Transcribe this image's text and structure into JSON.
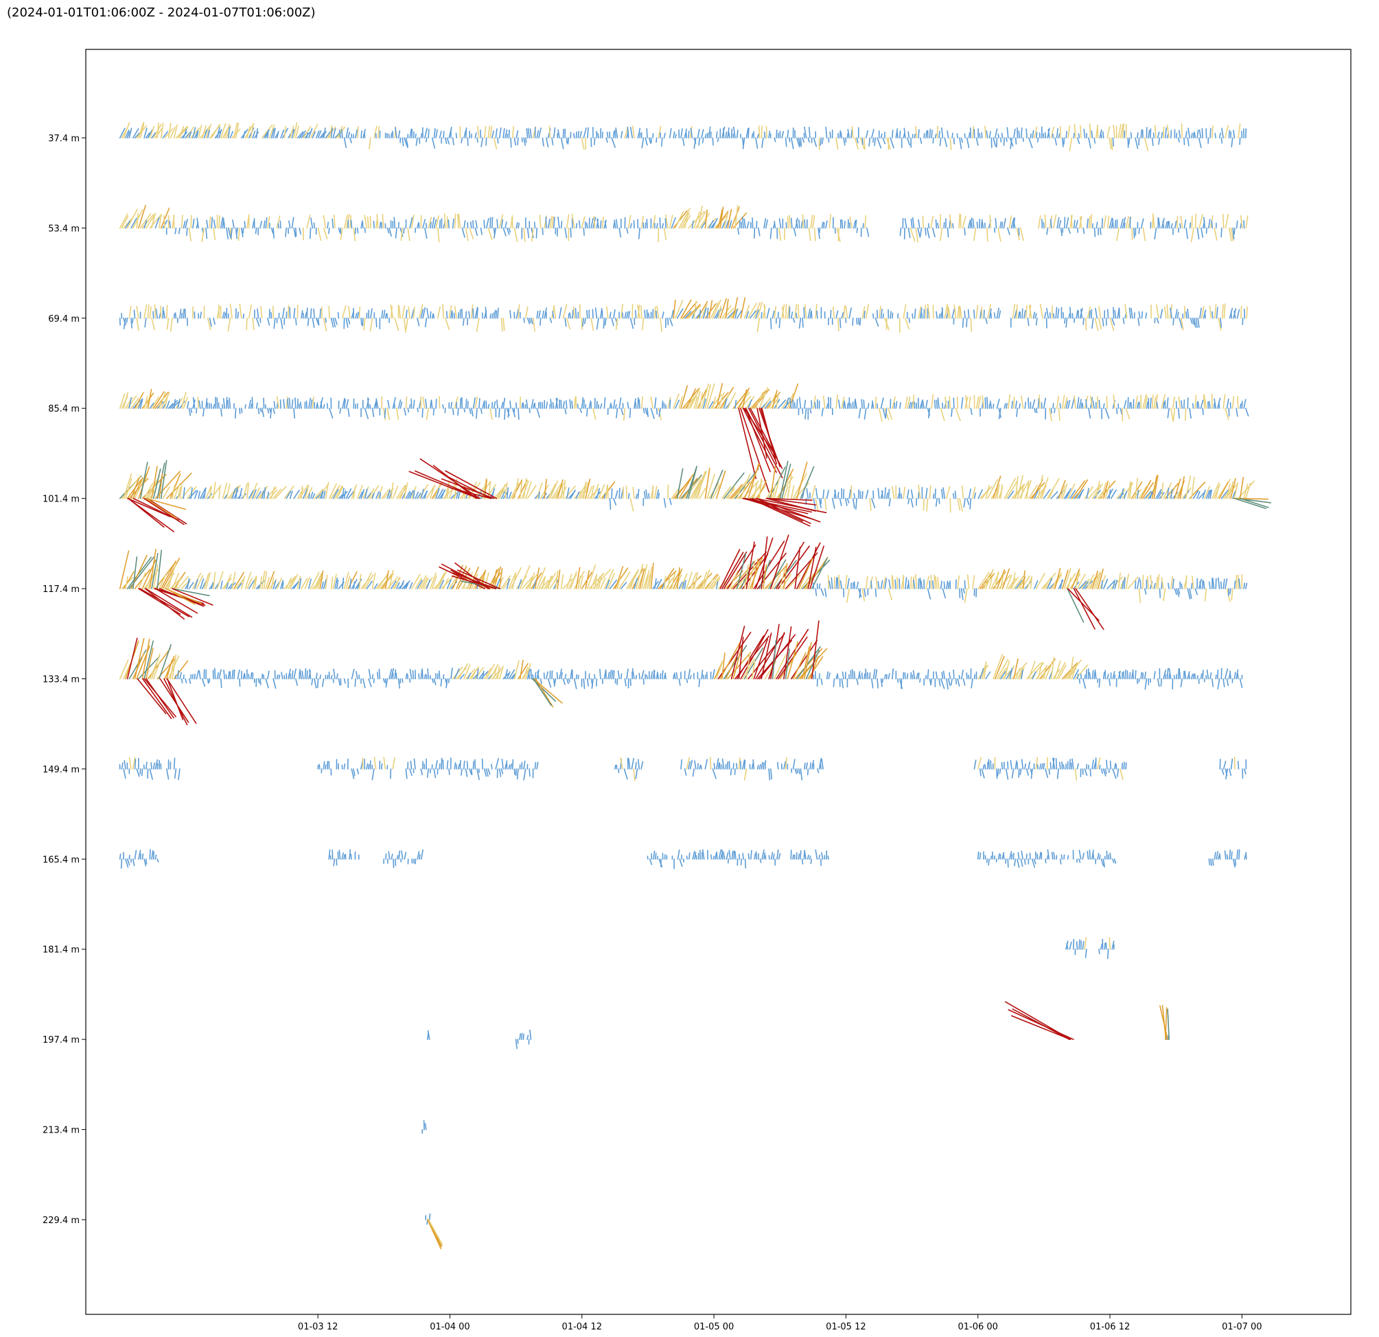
{
  "title": "(2024-01-01T01:06:00Z - 2024-01-07T01:06:00Z)",
  "colors": {
    "speed_low": "#5b9bd5",
    "speed_mid": "#e8d07a",
    "speed_high": "#e0a030",
    "speed_gust": "#5f8f7f",
    "speed_max": "#b50e0e",
    "frame": "#000000",
    "background": "#ffffff"
  },
  "chart_data": {
    "type": "stick-plot",
    "title": "(2024-01-01T01:06:00Z - 2024-01-07T01:06:00Z)",
    "xlabel": "",
    "ylabel": "",
    "x_ticks": [
      "01-03 12",
      "01-04 00",
      "01-04 12",
      "01-05 00",
      "01-05 12",
      "01-06 00",
      "01-06 12",
      "01-07 00"
    ],
    "x_tick_hours": [
      12,
      24,
      36,
      48,
      60,
      72,
      84,
      96
    ],
    "xlim_hours": [
      -9.1,
      105.9
    ],
    "x_origin": "2024-01-03 00:00",
    "data_range_hours": [
      -6.0,
      96.5
    ],
    "y_ticks": [
      "37.4 m",
      "53.4 m",
      "69.4 m",
      "85.4 m",
      "101.4 m",
      "117.4 m",
      "133.4 m",
      "149.4 m",
      "165.4 m",
      "181.4 m",
      "197.4 m",
      "213.4 m",
      "229.4 m"
    ],
    "y_tick_values": [
      37.4,
      53.4,
      69.4,
      85.4,
      101.4,
      117.4,
      133.4,
      149.4,
      165.4,
      181.4,
      197.4,
      213.4,
      229.4
    ],
    "ylim": [
      21.7,
      246.2
    ],
    "y_inverted": true,
    "grid": false,
    "legend": "none",
    "levels": [
      {
        "depth": 37.4,
        "coverage": [
          [
            -6.0,
            96.5
          ]
        ],
        "intensity": [
          [
            -6.0,
            14.0,
            0.35
          ],
          [
            14.0,
            50.0,
            0.25
          ],
          [
            50.0,
            80.0,
            0.25
          ],
          [
            80.0,
            96.5,
            0.3
          ]
        ],
        "events": []
      },
      {
        "depth": 53.4,
        "coverage": [
          [
            -6.0,
            50.0
          ],
          [
            50.0,
            62.0
          ],
          [
            65.0,
            76.0
          ],
          [
            77.5,
            96.5
          ]
        ],
        "intensity": [
          [
            -6.0,
            -2.0,
            0.55
          ],
          [
            -2.0,
            44.0,
            0.3
          ],
          [
            44.0,
            50.0,
            0.5
          ],
          [
            50.0,
            96.5,
            0.3
          ]
        ],
        "events": []
      },
      {
        "depth": 69.4,
        "coverage": [
          [
            -6.0,
            74.0
          ],
          [
            75.0,
            96.5
          ]
        ],
        "intensity": [
          [
            -6.0,
            44.0,
            0.3
          ],
          [
            44.0,
            52.0,
            0.45
          ],
          [
            52.0,
            96.5,
            0.3
          ]
        ],
        "events": []
      },
      {
        "depth": 85.4,
        "coverage": [
          [
            -6.0,
            96.5
          ]
        ],
        "intensity": [
          [
            -6.0,
            0.0,
            0.45
          ],
          [
            0.0,
            44.0,
            0.25
          ],
          [
            44.0,
            55.0,
            0.55
          ],
          [
            55.0,
            96.5,
            0.3
          ]
        ],
        "events": [
          [
            50.5,
            160,
            2.2
          ],
          [
            51.0,
            150,
            1.8
          ],
          [
            52.0,
            165,
            1.6
          ]
        ]
      },
      {
        "depth": 101.4,
        "coverage": [
          [
            -6.0,
            96.5
          ]
        ],
        "intensity": [
          [
            -6.0,
            -1.0,
            0.85
          ],
          [
            -1.0,
            22.0,
            0.35
          ],
          [
            22.0,
            38.0,
            0.45
          ],
          [
            38.0,
            44.0,
            0.3
          ],
          [
            44.0,
            56.0,
            0.8
          ],
          [
            56.0,
            72.0,
            0.3
          ],
          [
            72.0,
            96.5,
            0.5
          ]
        ],
        "events": [
          [
            -5.0,
            120,
            1.4
          ],
          [
            -3.5,
            115,
            1.2
          ],
          [
            26.5,
            300,
            1.8
          ],
          [
            28.0,
            290,
            1.4
          ],
          [
            51.0,
            110,
            2.0
          ],
          [
            51.5,
            105,
            1.8
          ],
          [
            52.5,
            95,
            1.3
          ],
          [
            95.5,
            100,
            1.0
          ]
        ]
      },
      {
        "depth": 117.4,
        "coverage": [
          [
            -6.0,
            96.5
          ]
        ],
        "intensity": [
          [
            -6.0,
            -1.0,
            0.85
          ],
          [
            -1.0,
            22.0,
            0.4
          ],
          [
            22.0,
            44.0,
            0.55
          ],
          [
            44.0,
            48.5,
            0.45
          ],
          [
            48.5,
            57.0,
            1.2
          ],
          [
            57.0,
            72.0,
            0.3
          ],
          [
            72.0,
            86.0,
            0.45
          ],
          [
            86.0,
            96.5,
            0.3
          ]
        ],
        "events": [
          [
            -4.0,
            120,
            1.4
          ],
          [
            -2.5,
            115,
            1.3
          ],
          [
            -1.5,
            110,
            1.1
          ],
          [
            27.5,
            300,
            1.4
          ],
          [
            28.5,
            290,
            1.2
          ],
          [
            80.5,
            145,
            1.2
          ]
        ]
      },
      {
        "depth": 133.4,
        "coverage": [
          [
            -6.0,
            96.5
          ]
        ],
        "intensity": [
          [
            -6.0,
            -1.0,
            0.9
          ],
          [
            -1.0,
            24.0,
            0.22
          ],
          [
            24.0,
            31.0,
            0.4
          ],
          [
            31.0,
            48.0,
            0.22
          ],
          [
            48.0,
            57.0,
            1.25
          ],
          [
            57.0,
            72.0,
            0.22
          ],
          [
            72.0,
            81.0,
            0.55
          ],
          [
            81.0,
            96.5,
            0.22
          ]
        ],
        "events": [
          [
            -4.0,
            145,
            1.2
          ],
          [
            -2.0,
            150,
            1.3
          ],
          [
            31.5,
            140,
            1.0
          ]
        ]
      },
      {
        "depth": 149.4,
        "coverage": [
          [
            -6.0,
            -0.5
          ],
          [
            12.0,
            19.0
          ],
          [
            20.0,
            32.0
          ],
          [
            39.0,
            41.5
          ],
          [
            45.0,
            58.0
          ],
          [
            71.5,
            85.5
          ],
          [
            94.0,
            96.5
          ]
        ],
        "intensity": [
          [
            -6.0,
            96.5,
            0.25
          ]
        ],
        "events": []
      },
      {
        "depth": 165.4,
        "coverage": [
          [
            -6.0,
            -2.5
          ],
          [
            13.0,
            16.0
          ],
          [
            18.0,
            22.0
          ],
          [
            42.0,
            54.0
          ],
          [
            55.0,
            58.5
          ],
          [
            72.0,
            84.5
          ],
          [
            93.0,
            96.5
          ]
        ],
        "intensity": [
          [
            -6.0,
            96.5,
            0.2
          ]
        ],
        "events": []
      },
      {
        "depth": 181.4,
        "coverage": [
          [
            80.0,
            82.0
          ],
          [
            83.0,
            84.5
          ]
        ],
        "intensity": [
          [
            80.0,
            84.5,
            0.25
          ]
        ],
        "events": []
      },
      {
        "depth": 197.4,
        "coverage": [
          [
            21.8,
            22.2
          ],
          [
            30.0,
            31.5
          ],
          [
            89.0,
            89.5
          ]
        ],
        "intensity": [
          [
            21.8,
            89.5,
            0.2
          ]
        ],
        "events": [
          [
            80.5,
            300,
            1.9
          ],
          [
            89.2,
            355,
            0.9
          ]
        ]
      },
      {
        "depth": 213.4,
        "coverage": [
          [
            21.5,
            22.0
          ]
        ],
        "intensity": [
          [
            21.5,
            22.0,
            0.2
          ]
        ],
        "events": []
      },
      {
        "depth": 229.4,
        "coverage": [
          [
            21.8,
            22.3
          ]
        ],
        "intensity": [
          [
            21.8,
            22.3,
            0.15
          ]
        ],
        "events": [
          [
            22.0,
            160,
            0.9
          ]
        ]
      }
    ]
  }
}
